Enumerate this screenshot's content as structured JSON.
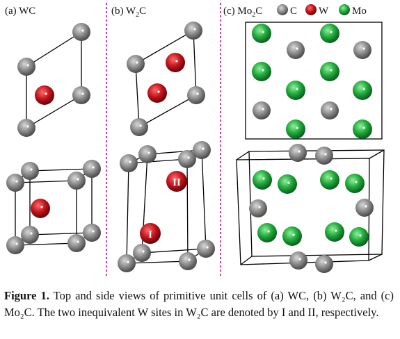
{
  "panels": {
    "a": {
      "label": "(a) WC"
    },
    "b": {
      "label_prefix": "(b) W",
      "label_sub": "2",
      "label_suffix": "C"
    },
    "c": {
      "label_prefix": "(c) Mo",
      "label_sub": "2",
      "label_suffix": "C"
    }
  },
  "legend": [
    {
      "key": "C",
      "color": "#808080"
    },
    {
      "key": "W",
      "color": "#c0141c"
    },
    {
      "key": "Mo",
      "color": "#1fa83a"
    }
  ],
  "site_labels": {
    "site1": "I",
    "site2": "II"
  },
  "caption": {
    "bold": "Figure 1.",
    "text": " Top and side views of primitive unit cells of (a) WC, (b) W₂C, and (c) Mo₂C. The two inequivalent W sites in W₂C are denoted by I and II, respectively."
  },
  "colors": {
    "carbon": "#808080",
    "tungsten": "#c0141c",
    "molybdenum": "#1fa83a",
    "divider": "#d0409a"
  }
}
